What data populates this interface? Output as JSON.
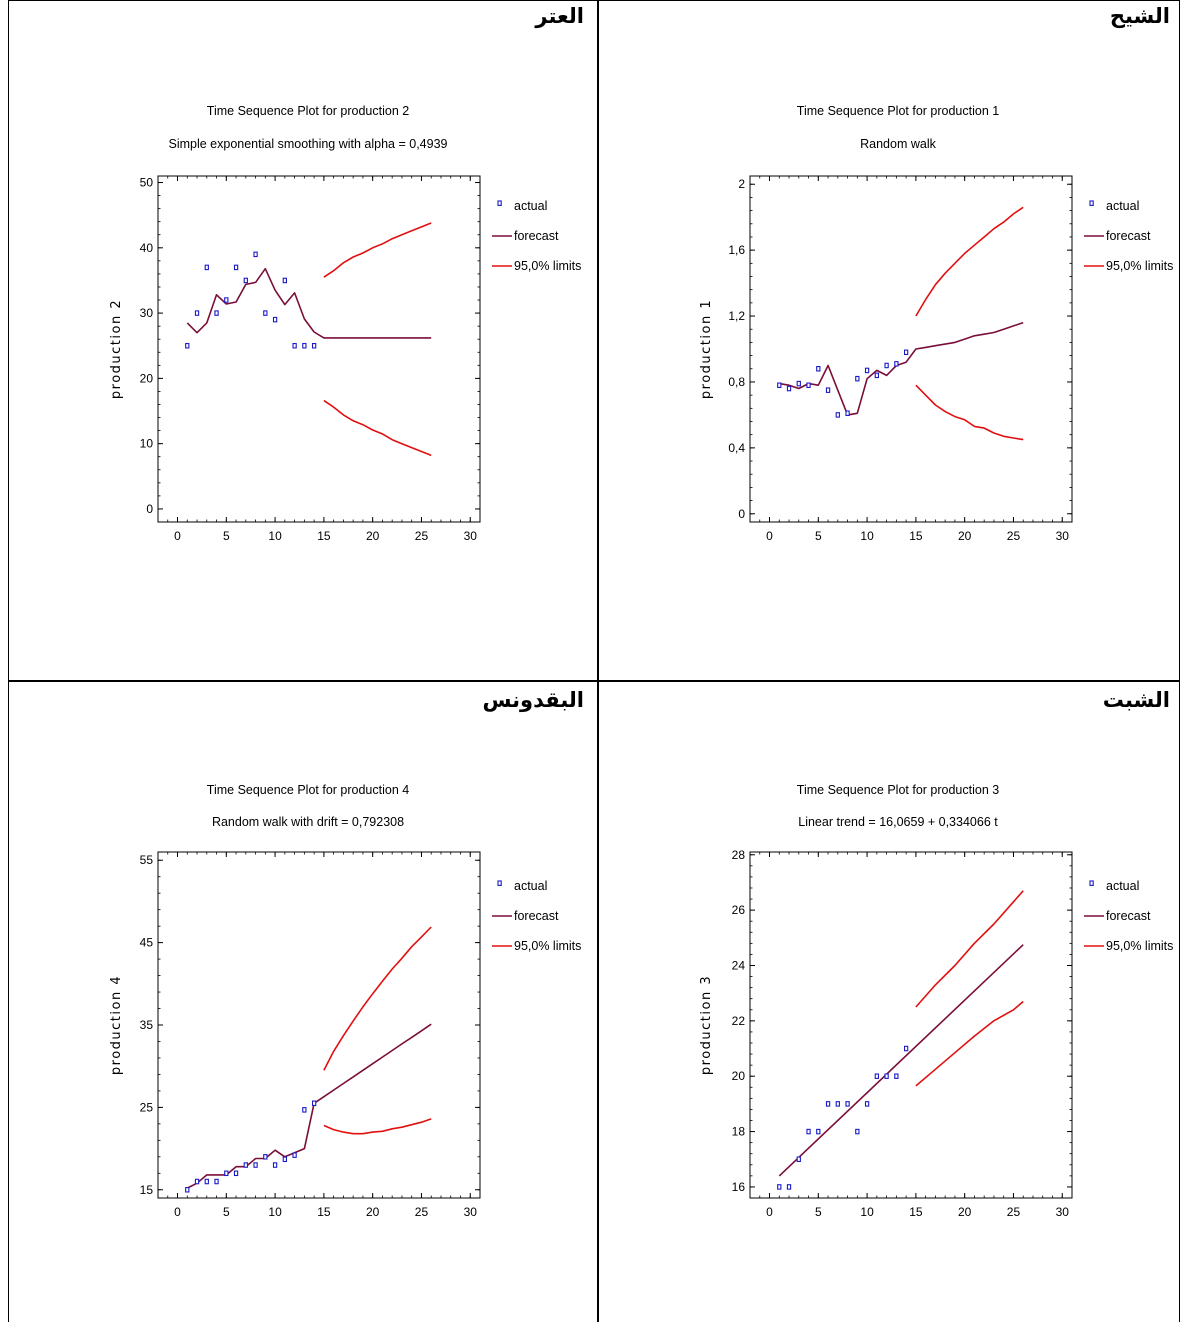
{
  "cells": [
    {
      "id": "top-right",
      "arabic_label": "الشيح",
      "chart_data": {
        "type": "line",
        "title": "Time Sequence Plot for production 1",
        "subtitle": "Random walk",
        "ylabel": "production 1",
        "xlabel": "",
        "xlim": [
          -2,
          31
        ],
        "ylim": [
          -0.05,
          2.05
        ],
        "xticks": [
          "0",
          "5",
          "10",
          "15",
          "20",
          "25",
          "30"
        ],
        "xtick_values": [
          0,
          5,
          10,
          15,
          20,
          25,
          30
        ],
        "yticks": [
          "0",
          "0,4",
          "0,8",
          "1,2",
          "1,6",
          "2"
        ],
        "ytick_values": [
          0,
          0.4,
          0.8,
          1.2,
          1.6,
          2
        ],
        "legend": [
          "actual",
          "forecast",
          "95,0% limits"
        ],
        "actual": {
          "x": [
            1,
            2,
            3,
            4,
            5,
            6,
            7,
            8,
            9,
            10,
            11,
            12,
            13,
            14
          ],
          "y": [
            0.78,
            0.76,
            0.79,
            0.78,
            0.88,
            0.75,
            0.6,
            0.61,
            0.82,
            0.87,
            0.84,
            0.9,
            0.91,
            0.98
          ]
        },
        "forecast": {
          "x": [
            1,
            2,
            3,
            4,
            5,
            6,
            7,
            8,
            9,
            10,
            11,
            12,
            13,
            14,
            15,
            16,
            17,
            18,
            19,
            20,
            21,
            22,
            23,
            24,
            25,
            26
          ],
          "y": [
            0.79,
            0.78,
            0.76,
            0.79,
            0.78,
            0.9,
            0.75,
            0.6,
            0.61,
            0.82,
            0.87,
            0.84,
            0.9,
            0.92,
            1.0,
            1.01,
            1.02,
            1.03,
            1.04,
            1.06,
            1.08,
            1.09,
            1.1,
            1.12,
            1.14,
            1.16
          ]
        },
        "upper": {
          "x": [
            15,
            16,
            17,
            18,
            19,
            20,
            21,
            22,
            23,
            24,
            25,
            26
          ],
          "y": [
            1.2,
            1.3,
            1.39,
            1.46,
            1.52,
            1.58,
            1.63,
            1.68,
            1.73,
            1.77,
            1.82,
            1.86
          ]
        },
        "lower": {
          "x": [
            15,
            16,
            17,
            18,
            19,
            20,
            21,
            22,
            23,
            24,
            25,
            26
          ],
          "y": [
            0.78,
            0.72,
            0.66,
            0.62,
            0.59,
            0.57,
            0.53,
            0.52,
            0.49,
            0.47,
            0.46,
            0.45
          ]
        }
      }
    },
    {
      "id": "top-left",
      "arabic_label": "العتر",
      "chart_data": {
        "type": "line",
        "title": "Time Sequence Plot for production 2",
        "subtitle": "Simple exponential smoothing with alpha = 0,4939",
        "ylabel": "production 2",
        "xlabel": "",
        "xlim": [
          -2,
          31
        ],
        "ylim": [
          -2,
          51
        ],
        "xticks": [
          "0",
          "5",
          "10",
          "15",
          "20",
          "25",
          "30"
        ],
        "xtick_values": [
          0,
          5,
          10,
          15,
          20,
          25,
          30
        ],
        "yticks": [
          "0",
          "10",
          "20",
          "30",
          "40",
          "50"
        ],
        "ytick_values": [
          0,
          10,
          20,
          30,
          40,
          50
        ],
        "legend": [
          "actual",
          "forecast",
          "95,0% limits"
        ],
        "actual": {
          "x": [
            1,
            2,
            3,
            4,
            5,
            6,
            7,
            8,
            9,
            10,
            11,
            12,
            13,
            14
          ],
          "y": [
            25,
            30,
            37,
            30,
            32,
            37,
            35,
            39,
            30,
            29,
            35,
            25,
            25,
            25
          ]
        },
        "forecast": {
          "x": [
            1,
            2,
            3,
            4,
            5,
            6,
            7,
            8,
            9,
            10,
            11,
            12,
            13,
            14,
            15,
            16,
            17,
            18,
            19,
            20,
            21,
            22,
            23,
            24,
            25,
            26
          ],
          "y": [
            28.5,
            27,
            28.5,
            32.8,
            31.4,
            31.7,
            34.4,
            34.7,
            36.8,
            33.5,
            31.3,
            33.1,
            29.1,
            27.1,
            26.2,
            26.2,
            26.2,
            26.2,
            26.2,
            26.2,
            26.2,
            26.2,
            26.2,
            26.2,
            26.2,
            26.2
          ]
        },
        "upper": {
          "x": [
            15,
            16,
            17,
            18,
            19,
            20,
            21,
            22,
            23,
            24,
            25,
            26
          ],
          "y": [
            35.5,
            36.5,
            37.7,
            38.6,
            39.2,
            40.0,
            40.6,
            41.4,
            42.0,
            42.6,
            43.2,
            43.8
          ]
        },
        "lower": {
          "x": [
            15,
            16,
            17,
            18,
            19,
            20,
            21,
            22,
            23,
            24,
            25,
            26
          ],
          "y": [
            16.6,
            15.6,
            14.4,
            13.5,
            12.9,
            12.1,
            11.5,
            10.6,
            10.0,
            9.4,
            8.8,
            8.2
          ]
        }
      }
    },
    {
      "id": "bottom-right",
      "arabic_label": "الشبت",
      "chart_data": {
        "type": "line",
        "title": "Time Sequence Plot for production 3",
        "subtitle": "Linear trend = 16,0659 + 0,334066 t",
        "ylabel": "production 3",
        "xlabel": "",
        "xlim": [
          -2,
          31
        ],
        "ylim": [
          15.6,
          28.1
        ],
        "xticks": [
          "0",
          "5",
          "10",
          "15",
          "20",
          "25",
          "30"
        ],
        "xtick_values": [
          0,
          5,
          10,
          15,
          20,
          25,
          30
        ],
        "yticks": [
          "16",
          "18",
          "20",
          "22",
          "24",
          "26",
          "28"
        ],
        "ytick_values": [
          16,
          18,
          20,
          22,
          24,
          26,
          28
        ],
        "legend": [
          "actual",
          "forecast",
          "95,0% limits"
        ],
        "actual": {
          "x": [
            1,
            2,
            3,
            4,
            5,
            6,
            7,
            8,
            9,
            10,
            11,
            12,
            13,
            14
          ],
          "y": [
            16,
            16,
            17,
            18,
            18,
            19,
            19,
            19,
            18,
            19,
            20,
            20,
            20,
            21
          ]
        },
        "forecast": {
          "x": [
            1,
            26
          ],
          "y": [
            16.4,
            24.75
          ]
        },
        "upper": {
          "x": [
            15,
            17,
            19,
            21,
            23,
            25,
            26
          ],
          "y": [
            22.5,
            23.3,
            24.0,
            24.8,
            25.5,
            26.3,
            26.7
          ]
        },
        "lower": {
          "x": [
            15,
            17,
            19,
            21,
            23,
            25,
            26
          ],
          "y": [
            19.65,
            20.25,
            20.85,
            21.45,
            22.0,
            22.4,
            22.7
          ]
        }
      }
    },
    {
      "id": "bottom-left",
      "arabic_label": "البقدونس",
      "chart_data": {
        "type": "line",
        "title": "Time Sequence Plot for production 4",
        "subtitle": "Random walk with drift = 0,792308",
        "ylabel": "production 4",
        "xlabel": "",
        "xlim": [
          -2,
          31
        ],
        "ylim": [
          14,
          56
        ],
        "xticks": [
          "0",
          "5",
          "10",
          "15",
          "20",
          "25",
          "30"
        ],
        "xtick_values": [
          0,
          5,
          10,
          15,
          20,
          25,
          30
        ],
        "yticks": [
          "15",
          "25",
          "35",
          "45",
          "55"
        ],
        "ytick_values": [
          15,
          25,
          35,
          45,
          55
        ],
        "legend": [
          "actual",
          "forecast",
          "95,0% limits"
        ],
        "actual": {
          "x": [
            1,
            2,
            3,
            4,
            5,
            6,
            7,
            8,
            9,
            10,
            11,
            12,
            13,
            14
          ],
          "y": [
            15,
            16,
            16,
            16,
            17,
            17,
            18,
            18,
            19,
            18,
            18.7,
            19.2,
            24.7,
            25.5
          ]
        },
        "forecast": {
          "x": [
            1,
            2,
            3,
            4,
            5,
            6,
            7,
            8,
            9,
            10,
            11,
            12,
            13,
            14,
            15,
            16,
            17,
            18,
            19,
            20,
            21,
            22,
            23,
            24,
            25,
            26
          ],
          "y": [
            15.2,
            15.8,
            16.8,
            16.8,
            16.8,
            17.8,
            17.8,
            18.8,
            18.8,
            19.8,
            19,
            19.5,
            20,
            25.5,
            26.3,
            27.1,
            27.9,
            28.7,
            29.5,
            30.3,
            31.1,
            31.9,
            32.7,
            33.5,
            34.3,
            35.1
          ]
        },
        "upper": {
          "x": [
            15,
            16,
            17,
            18,
            19,
            20,
            21,
            22,
            23,
            24,
            25,
            26
          ],
          "y": [
            29.5,
            31.8,
            33.7,
            35.5,
            37.2,
            38.8,
            40.3,
            41.8,
            43.1,
            44.5,
            45.7,
            46.9
          ]
        },
        "lower": {
          "x": [
            15,
            16,
            17,
            18,
            19,
            20,
            21,
            22,
            23,
            24,
            25,
            26
          ],
          "y": [
            22.8,
            22.3,
            22.0,
            21.8,
            21.8,
            22.0,
            22.1,
            22.4,
            22.6,
            22.9,
            23.2,
            23.6
          ]
        }
      }
    }
  ],
  "colors": {
    "actual": "#1a1acc",
    "forecast": "#7a0e3a",
    "limits": "#e01010",
    "axis": "#000000"
  }
}
